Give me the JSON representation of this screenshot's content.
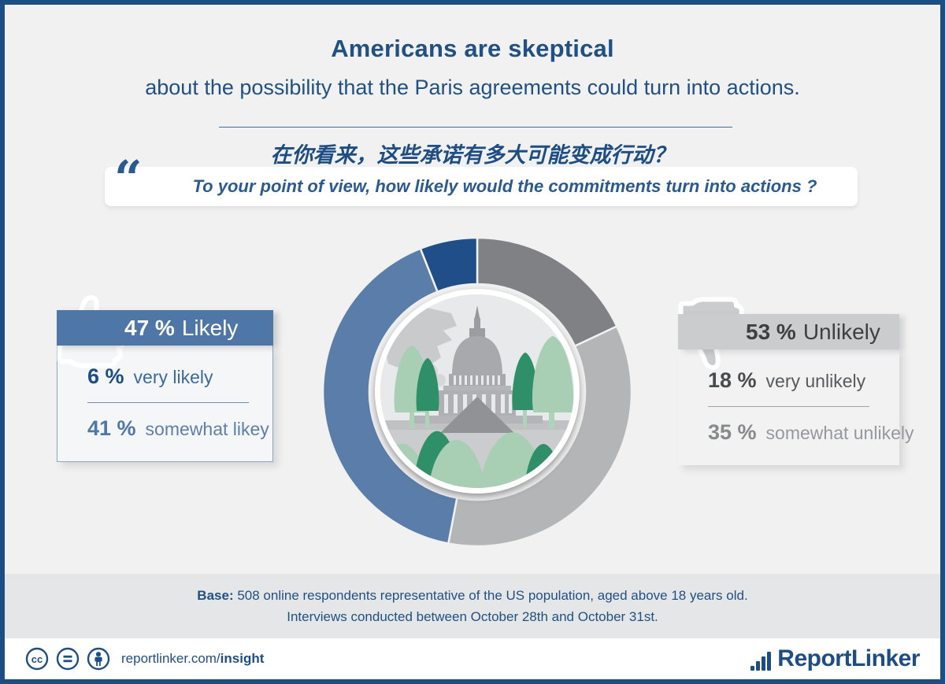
{
  "page": {
    "title": "Americans are skeptical",
    "subtitle": "about the possibility that the Paris agreements could turn into actions.",
    "question_cn": "在你看来，这些承诺有多大可能变成行动？",
    "question_en": "To your point of view, how likely would the commitments turn into actions ?",
    "quote_glyph": "“"
  },
  "chart_data": {
    "type": "pie",
    "subtype": "donut",
    "title": "How likely would the Paris commitments turn into actions",
    "unit": "%",
    "start_angle_deg": 0,
    "direction": "clockwise",
    "segments": [
      {
        "label": "very unlikely",
        "value": 18,
        "color": "#808184"
      },
      {
        "label": "somewhat unlikely",
        "value": 35,
        "color": "#b4b5b7"
      },
      {
        "label": "somewhat likely",
        "value": 41,
        "color": "#5b7da9"
      },
      {
        "label": "very likely",
        "value": 6,
        "color": "#1f4e88"
      }
    ],
    "groups": [
      {
        "label": "Likely",
        "value": 47
      },
      {
        "label": "Unlikely",
        "value": 53
      }
    ],
    "center_illustration": "us-capitol-with-trees",
    "separator_color": "#f1f1f2"
  },
  "likely_panel": {
    "header_pct": "47 %",
    "header_label": "Likely",
    "rows": [
      {
        "pct": "6 %",
        "label": "very likely"
      },
      {
        "pct": "41 %",
        "label": "somewhat likey"
      }
    ]
  },
  "unlikely_panel": {
    "header_pct": "53 %",
    "header_label": "Unlikely",
    "rows": [
      {
        "pct": "18 %",
        "label": "very unlikely"
      },
      {
        "pct": "35 %",
        "label": "somewhat unlikely"
      }
    ]
  },
  "base": {
    "label": "Base:",
    "line1": " 508 online respondents representative of the US population, aged above 18 years old.",
    "line2": "Interviews conducted between October 28th and October 31st."
  },
  "footer": {
    "url_prefix": "reportlinker.com/",
    "url_bold": "insight",
    "logo_text": "ReportLinker"
  },
  "colors": {
    "page_background": "#f1f1f2",
    "page_border": "#1d4e81",
    "heading_blue": "#215083",
    "likely_header": "#4e76a6",
    "unlikely_header": "#cbcccd",
    "base_band": "#e5e6e7",
    "logo_blue": "#1e4d84"
  }
}
